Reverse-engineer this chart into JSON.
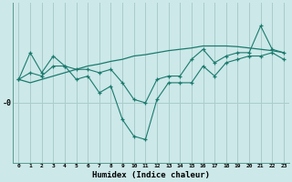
{
  "xlabel": "Humidex (Indice chaleur)",
  "background_color": "#cce8e8",
  "grid_color": "#aacccc",
  "line_color": "#1a7a6e",
  "x_values": [
    0,
    1,
    2,
    3,
    4,
    5,
    6,
    7,
    8,
    9,
    10,
    11,
    12,
    13,
    14,
    15,
    16,
    17,
    18,
    19,
    20,
    21,
    22,
    23
  ],
  "line1_y": [
    3.5,
    7.5,
    4.5,
    7.0,
    5.5,
    5.0,
    5.0,
    4.5,
    5.0,
    3.0,
    0.5,
    0.0,
    3.5,
    4.0,
    4.0,
    6.5,
    8.0,
    6.0,
    7.0,
    7.5,
    7.5,
    11.5,
    8.0,
    7.5
  ],
  "line2_y": [
    3.5,
    4.5,
    4.0,
    5.5,
    5.5,
    3.5,
    4.0,
    1.5,
    2.5,
    -2.5,
    -5.0,
    -5.5,
    0.5,
    3.0,
    3.0,
    3.0,
    5.5,
    4.0,
    6.0,
    6.5,
    7.0,
    7.0,
    7.5,
    6.5
  ],
  "line3_y": [
    3.5,
    3.0,
    3.5,
    4.0,
    4.5,
    5.0,
    5.5,
    5.8,
    6.2,
    6.5,
    7.0,
    7.2,
    7.5,
    7.8,
    8.0,
    8.2,
    8.5,
    8.5,
    8.5,
    8.4,
    8.2,
    8.0,
    7.8,
    7.5
  ],
  "ylim": [
    -9,
    15
  ],
  "ytick_label": "-0",
  "ytick_val": 0,
  "figsize": [
    3.2,
    2.0
  ],
  "dpi": 100
}
